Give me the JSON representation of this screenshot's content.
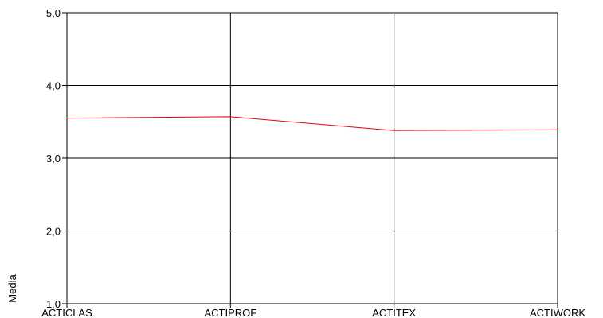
{
  "chart_data": {
    "type": "line",
    "categories": [
      "ACTICLAS",
      "ACTIPROF",
      "ACTITEX",
      "ACTIWORK"
    ],
    "series": [
      {
        "values": [
          3.55,
          3.57,
          3.38,
          3.39
        ],
        "color": "#e8000b"
      }
    ],
    "ylabel": "Media",
    "ylim": [
      1.0,
      5.0
    ],
    "yticks": [
      1.0,
      2.0,
      3.0,
      4.0,
      5.0
    ],
    "ytick_labels": [
      "1,0",
      "2,0",
      "3,0",
      "4,0",
      "5,0"
    ],
    "grid": "on",
    "frame_color": "#000000",
    "grid_color": "#000000"
  }
}
